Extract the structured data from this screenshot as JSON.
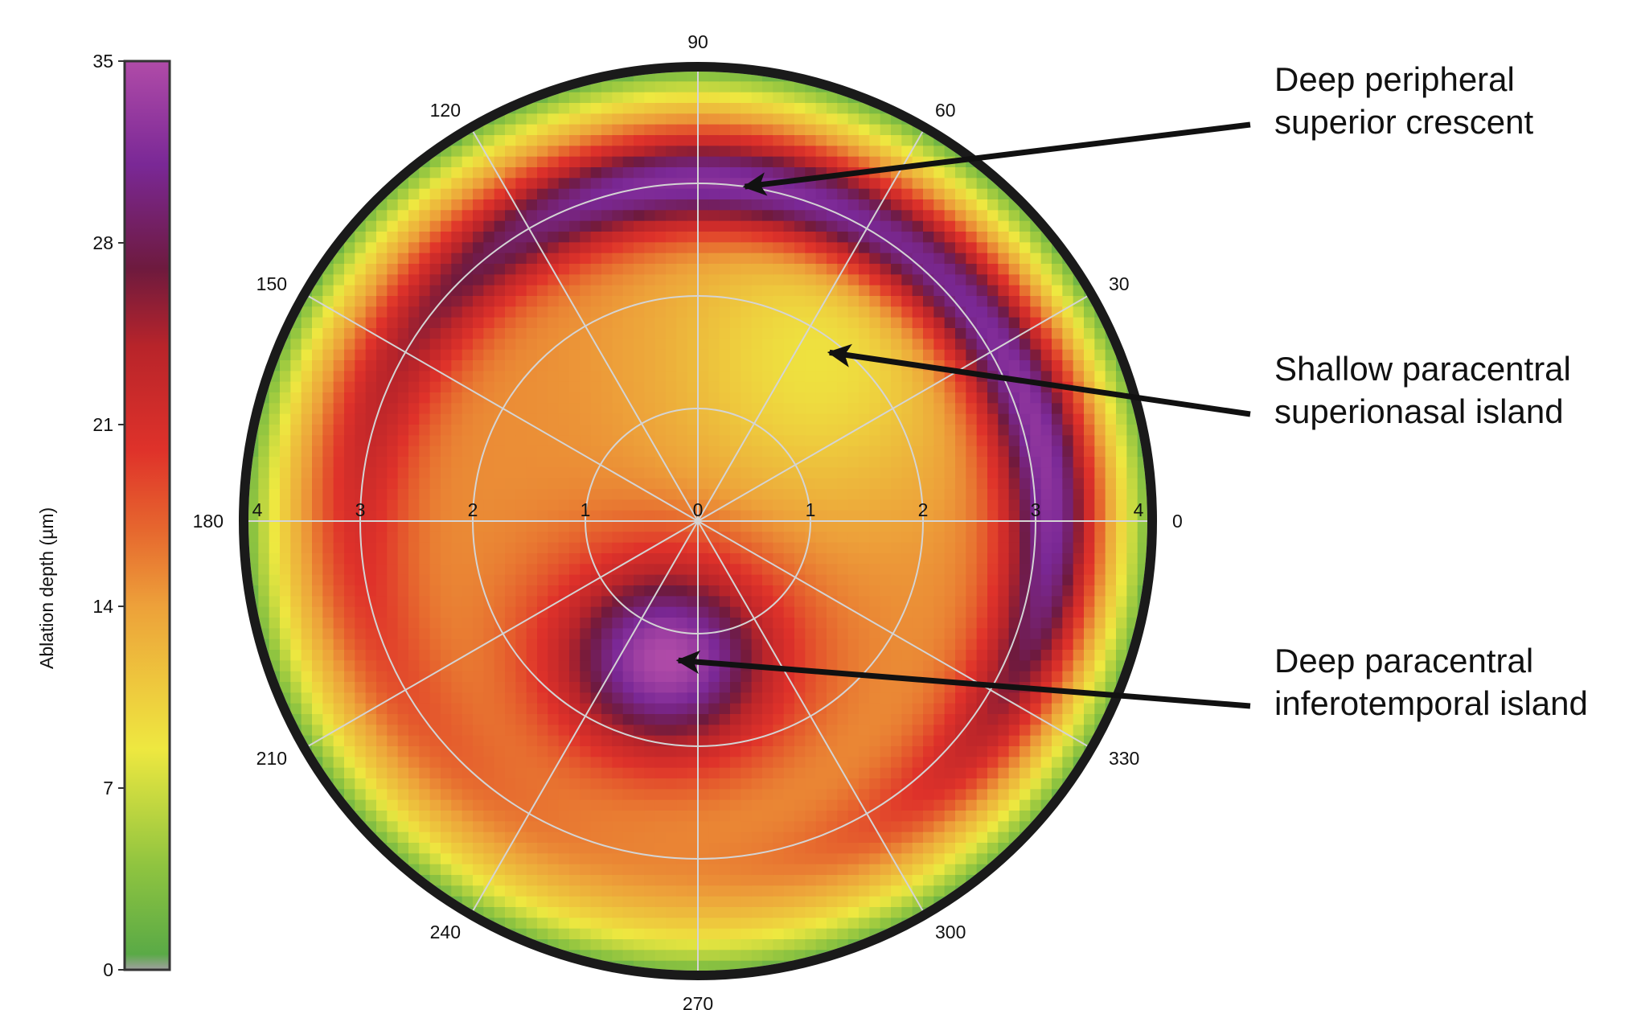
{
  "chart_data": {
    "type": "heatmap",
    "subtype": "polar",
    "colorbar": {
      "label": "Ablation depth (µm)",
      "ticks": [
        0,
        7,
        14,
        21,
        28,
        35
      ],
      "range": [
        0,
        35
      ],
      "colors": [
        {
          "v": 0,
          "c": "#a0a0a0"
        },
        {
          "v": 0.6,
          "c": "#5aaa46"
        },
        {
          "v": 4,
          "c": "#8fc440"
        },
        {
          "v": 8.5,
          "c": "#eee840"
        },
        {
          "v": 14,
          "c": "#eda13a"
        },
        {
          "v": 17,
          "c": "#e6662e"
        },
        {
          "v": 20,
          "c": "#df322a"
        },
        {
          "v": 24,
          "c": "#b8242a"
        },
        {
          "v": 27,
          "c": "#6e1a3e"
        },
        {
          "v": 31,
          "c": "#7a2896"
        },
        {
          "v": 35,
          "c": "#b04ba8"
        }
      ]
    },
    "angular_ticks": [
      "0",
      "30",
      "60",
      "90",
      "120",
      "150",
      "180",
      "210",
      "240",
      "270",
      "300",
      "330"
    ],
    "radial_ticks": [
      "0",
      "1",
      "2",
      "3",
      "4"
    ],
    "radial_range": [
      0,
      4
    ],
    "angular_grid": true,
    "radial_grid": true,
    "features": [
      {
        "name": "Deep peripheral superior crescent",
        "r": 3.0,
        "theta_deg": 90,
        "approx_depth": 30
      },
      {
        "name": "Shallow paracentral superionasal island",
        "r": 1.9,
        "theta_deg": 55,
        "approx_depth": 11
      },
      {
        "name": "Deep paracentral inferotemporal island",
        "r": 1.2,
        "theta_deg": 252,
        "approx_depth": 34
      }
    ]
  },
  "annotations": [
    {
      "line1": "Deep peripheral",
      "line2": "superior crescent",
      "target_r": 3.0,
      "target_theta_deg": 82
    },
    {
      "line1": "Shallow paracentral",
      "line2": "superionasal island",
      "target_r": 1.9,
      "target_theta_deg": 52
    },
    {
      "line1": "Deep paracentral",
      "line2": "inferotemporal island",
      "target_r": 1.25,
      "target_theta_deg": 262
    }
  ]
}
